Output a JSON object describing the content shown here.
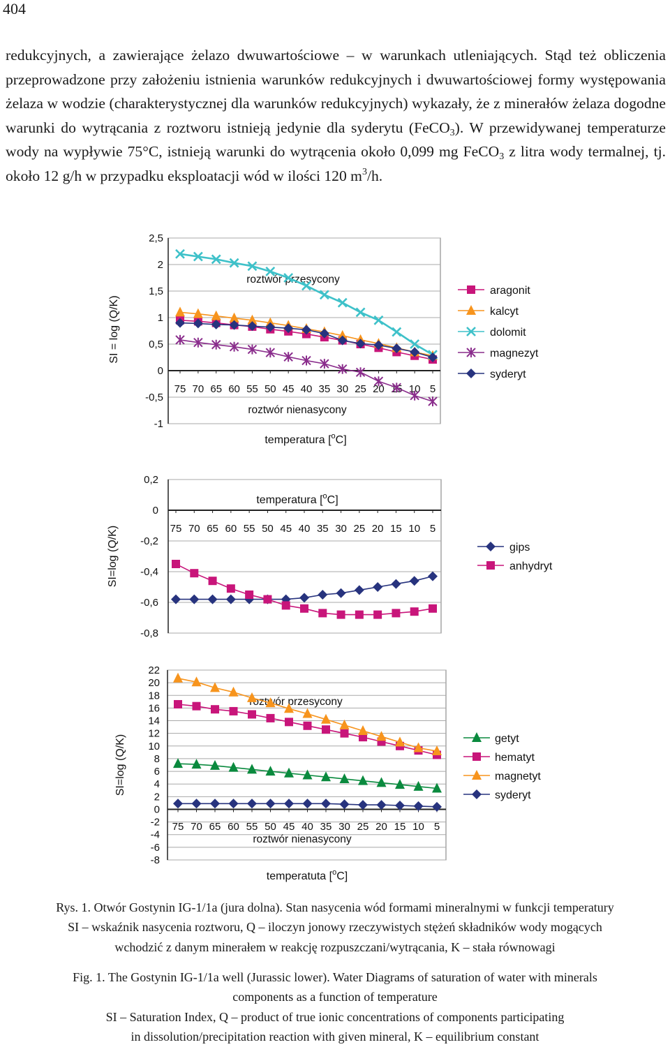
{
  "page_number": "404",
  "paragraph": {
    "t1": "redukcyjnych, a zawierające żelazo dwuwartościowe – w warunkach utleniających. Stąd też obliczenia przeprowadzone przy założeniu istnienia warunków redukcyjnych i dwuwartościowej formy występowania żelaza w wodzie (charakterystycznej dla warunków redukcyjnych) wykazały, że z minerałów żelaza dogodne warunki do wytrącania z roztworu istnieją jedynie dla syderytu (FeCO",
    "s1": "3",
    "t2": "). W przewidywanej temperaturze wody na wypływie 75°C, istnieją warunki do wytrącenia około 0,099 mg FeCO",
    "s2": "3",
    "t3": " z litra wody termalnej, tj. około 12 g/h w przypadku eksploatacji wód w ilości 120 m",
    "sup": "3",
    "t4": "/h."
  },
  "chart_data": [
    {
      "type": "line",
      "ylabel": "SI = log (Q/K)",
      "xlabel": "temperatura [",
      "xlabel_sup": "o",
      "xlabel_end": "C]",
      "ylim": [
        -1,
        2.5
      ],
      "yticks": [
        2.5,
        2,
        1.5,
        1,
        0.5,
        0,
        -0.5,
        -1
      ],
      "ytick_labels": [
        "2,5",
        "2",
        "1,5",
        "1",
        "0,5",
        "0",
        "-0,5",
        "-1"
      ],
      "x": [
        75,
        70,
        65,
        60,
        55,
        50,
        45,
        40,
        35,
        30,
        25,
        20,
        15,
        10,
        5
      ],
      "x_labels": [
        "75",
        "70",
        "65",
        "60",
        "55",
        "50",
        "45",
        "40",
        "35",
        "30",
        "25",
        "20",
        "15",
        "10",
        "5"
      ],
      "annotations": [
        "roztwór przesycony",
        "roztwór nienasycony"
      ],
      "series": [
        {
          "name": "aragonit",
          "color": "#c8157a",
          "marker": "square",
          "values": [
            0.95,
            0.93,
            0.9,
            0.86,
            0.83,
            0.78,
            0.74,
            0.69,
            0.63,
            0.57,
            0.5,
            0.43,
            0.35,
            0.28,
            0.21
          ]
        },
        {
          "name": "kalcyt",
          "color": "#f7941d",
          "marker": "triangle",
          "values": [
            1.1,
            1.07,
            1.03,
            0.99,
            0.95,
            0.9,
            0.85,
            0.79,
            0.73,
            0.66,
            0.58,
            0.51,
            0.43,
            0.35,
            0.28
          ]
        },
        {
          "name": "dolomit",
          "color": "#3ec1c9",
          "marker": "x",
          "values": [
            2.2,
            2.15,
            2.1,
            2.03,
            1.97,
            1.87,
            1.75,
            1.6,
            1.43,
            1.28,
            1.1,
            0.95,
            0.73,
            0.5,
            0.3
          ]
        },
        {
          "name": "magnezyt",
          "color": "#8a2d8c",
          "marker": "star",
          "values": [
            0.58,
            0.53,
            0.49,
            0.45,
            0.4,
            0.34,
            0.26,
            0.19,
            0.13,
            0.03,
            -0.03,
            -0.2,
            -0.32,
            -0.47,
            -0.58
          ]
        },
        {
          "name": "syderyt",
          "color": "#27337e",
          "marker": "diamond",
          "values": [
            0.9,
            0.89,
            0.87,
            0.86,
            0.84,
            0.82,
            0.8,
            0.77,
            0.7,
            0.57,
            0.51,
            0.48,
            0.42,
            0.35,
            0.25
          ]
        }
      ]
    },
    {
      "type": "line",
      "ylabel": "SI=log (Q/K)",
      "xlabel": "temperatura [",
      "xlabel_sup": "o",
      "xlabel_end": "C]",
      "ylim": [
        -0.8,
        0.2
      ],
      "yticks": [
        0.2,
        0,
        -0.2,
        -0.4,
        -0.6,
        -0.8
      ],
      "ytick_labels": [
        "0,2",
        "0",
        "-0,2",
        "-0,4",
        "-0,6",
        "-0,8"
      ],
      "x": [
        75,
        70,
        65,
        60,
        55,
        50,
        45,
        40,
        35,
        30,
        25,
        20,
        15,
        10,
        5
      ],
      "x_labels": [
        "75",
        "70",
        "65",
        "60",
        "55",
        "50",
        "45",
        "40",
        "35",
        "30",
        "25",
        "20",
        "15",
        "10",
        "5"
      ],
      "annotations": [],
      "series": [
        {
          "name": "gips",
          "color": "#27337e",
          "marker": "diamond",
          "values": [
            -0.58,
            -0.58,
            -0.58,
            -0.58,
            -0.58,
            -0.58,
            -0.58,
            -0.57,
            -0.55,
            -0.54,
            -0.52,
            -0.5,
            -0.48,
            -0.46,
            -0.43
          ]
        },
        {
          "name": "anhydryt",
          "color": "#c8157a",
          "marker": "square",
          "values": [
            -0.35,
            -0.41,
            -0.46,
            -0.51,
            -0.55,
            -0.58,
            -0.62,
            -0.64,
            -0.67,
            -0.68,
            -0.68,
            -0.68,
            -0.67,
            -0.66,
            -0.64
          ]
        }
      ]
    },
    {
      "type": "line",
      "ylabel": "SI=log (Q/K)",
      "xlabel": "temperatuta [",
      "xlabel_sup": "o",
      "xlabel_end": "C]",
      "ylim": [
        -8,
        22
      ],
      "yticks": [
        22,
        20,
        18,
        16,
        14,
        12,
        10,
        8,
        6,
        4,
        2,
        0,
        -2,
        -4,
        -6,
        -8
      ],
      "ytick_labels": [
        "22",
        "20",
        "18",
        "16",
        "14",
        "12",
        "10",
        "8",
        "6",
        "4",
        "2",
        "0",
        "-2",
        "-4",
        "-6",
        "-8"
      ],
      "x": [
        75,
        70,
        65,
        60,
        55,
        50,
        45,
        40,
        35,
        30,
        25,
        20,
        15,
        10,
        5
      ],
      "x_labels": [
        "75",
        "70",
        "65",
        "60",
        "55",
        "50",
        "45",
        "40",
        "35",
        "30",
        "25",
        "20",
        "15",
        "10",
        "5"
      ],
      "annotations": [
        "roztwór przesycony",
        "roztwór nienasycony"
      ],
      "series": [
        {
          "name": "getyt",
          "color": "#0a8a3e",
          "marker": "triangle",
          "values": [
            7.2,
            7.1,
            6.9,
            6.6,
            6.3,
            6.0,
            5.7,
            5.4,
            5.1,
            4.8,
            4.5,
            4.2,
            3.9,
            3.6,
            3.3
          ]
        },
        {
          "name": "hematyt",
          "color": "#c8157a",
          "marker": "square",
          "values": [
            16.6,
            16.3,
            15.8,
            15.5,
            15.0,
            14.4,
            13.8,
            13.2,
            12.6,
            12.0,
            11.4,
            10.7,
            10.0,
            9.3,
            8.6
          ]
        },
        {
          "name": "magnetyt",
          "color": "#f7941d",
          "marker": "triangle",
          "values": [
            20.7,
            20.1,
            19.2,
            18.5,
            17.6,
            16.8,
            15.9,
            15.1,
            14.2,
            13.3,
            12.4,
            11.5,
            10.6,
            9.7,
            9.2
          ]
        },
        {
          "name": "syderyt",
          "color": "#27337e",
          "marker": "diamond",
          "values": [
            0.9,
            0.9,
            0.9,
            0.9,
            0.9,
            0.9,
            0.9,
            0.9,
            0.9,
            0.8,
            0.7,
            0.7,
            0.6,
            0.5,
            0.4
          ]
        }
      ]
    }
  ],
  "caption_pl": {
    "line1": "Rys. 1. Otwór Gostynin IG-1/1a (jura dolna). Stan nasycenia wód formami mineralnymi w funkcji temperatury",
    "line2": "SI – wskaźnik nasycenia roztworu, Q – iloczyn jonowy rzeczywistych stężeń składników wody mogących",
    "line3": "wchodzić z danym minerałem w reakcję rozpuszczani/wytrącania, K – stała równowagi"
  },
  "caption_en": {
    "line1": "Fig. 1. The Gostynin IG-1/1a well (Jurassic lower). Water Diagrams of saturation of water with minerals",
    "line2": "components as a function of temperature",
    "line3": "SI – Saturation Index, Q – product of true ionic concentrations of components participating",
    "line4": "in dissolution/precipitation reaction with given mineral, K – equilibrium constant"
  }
}
